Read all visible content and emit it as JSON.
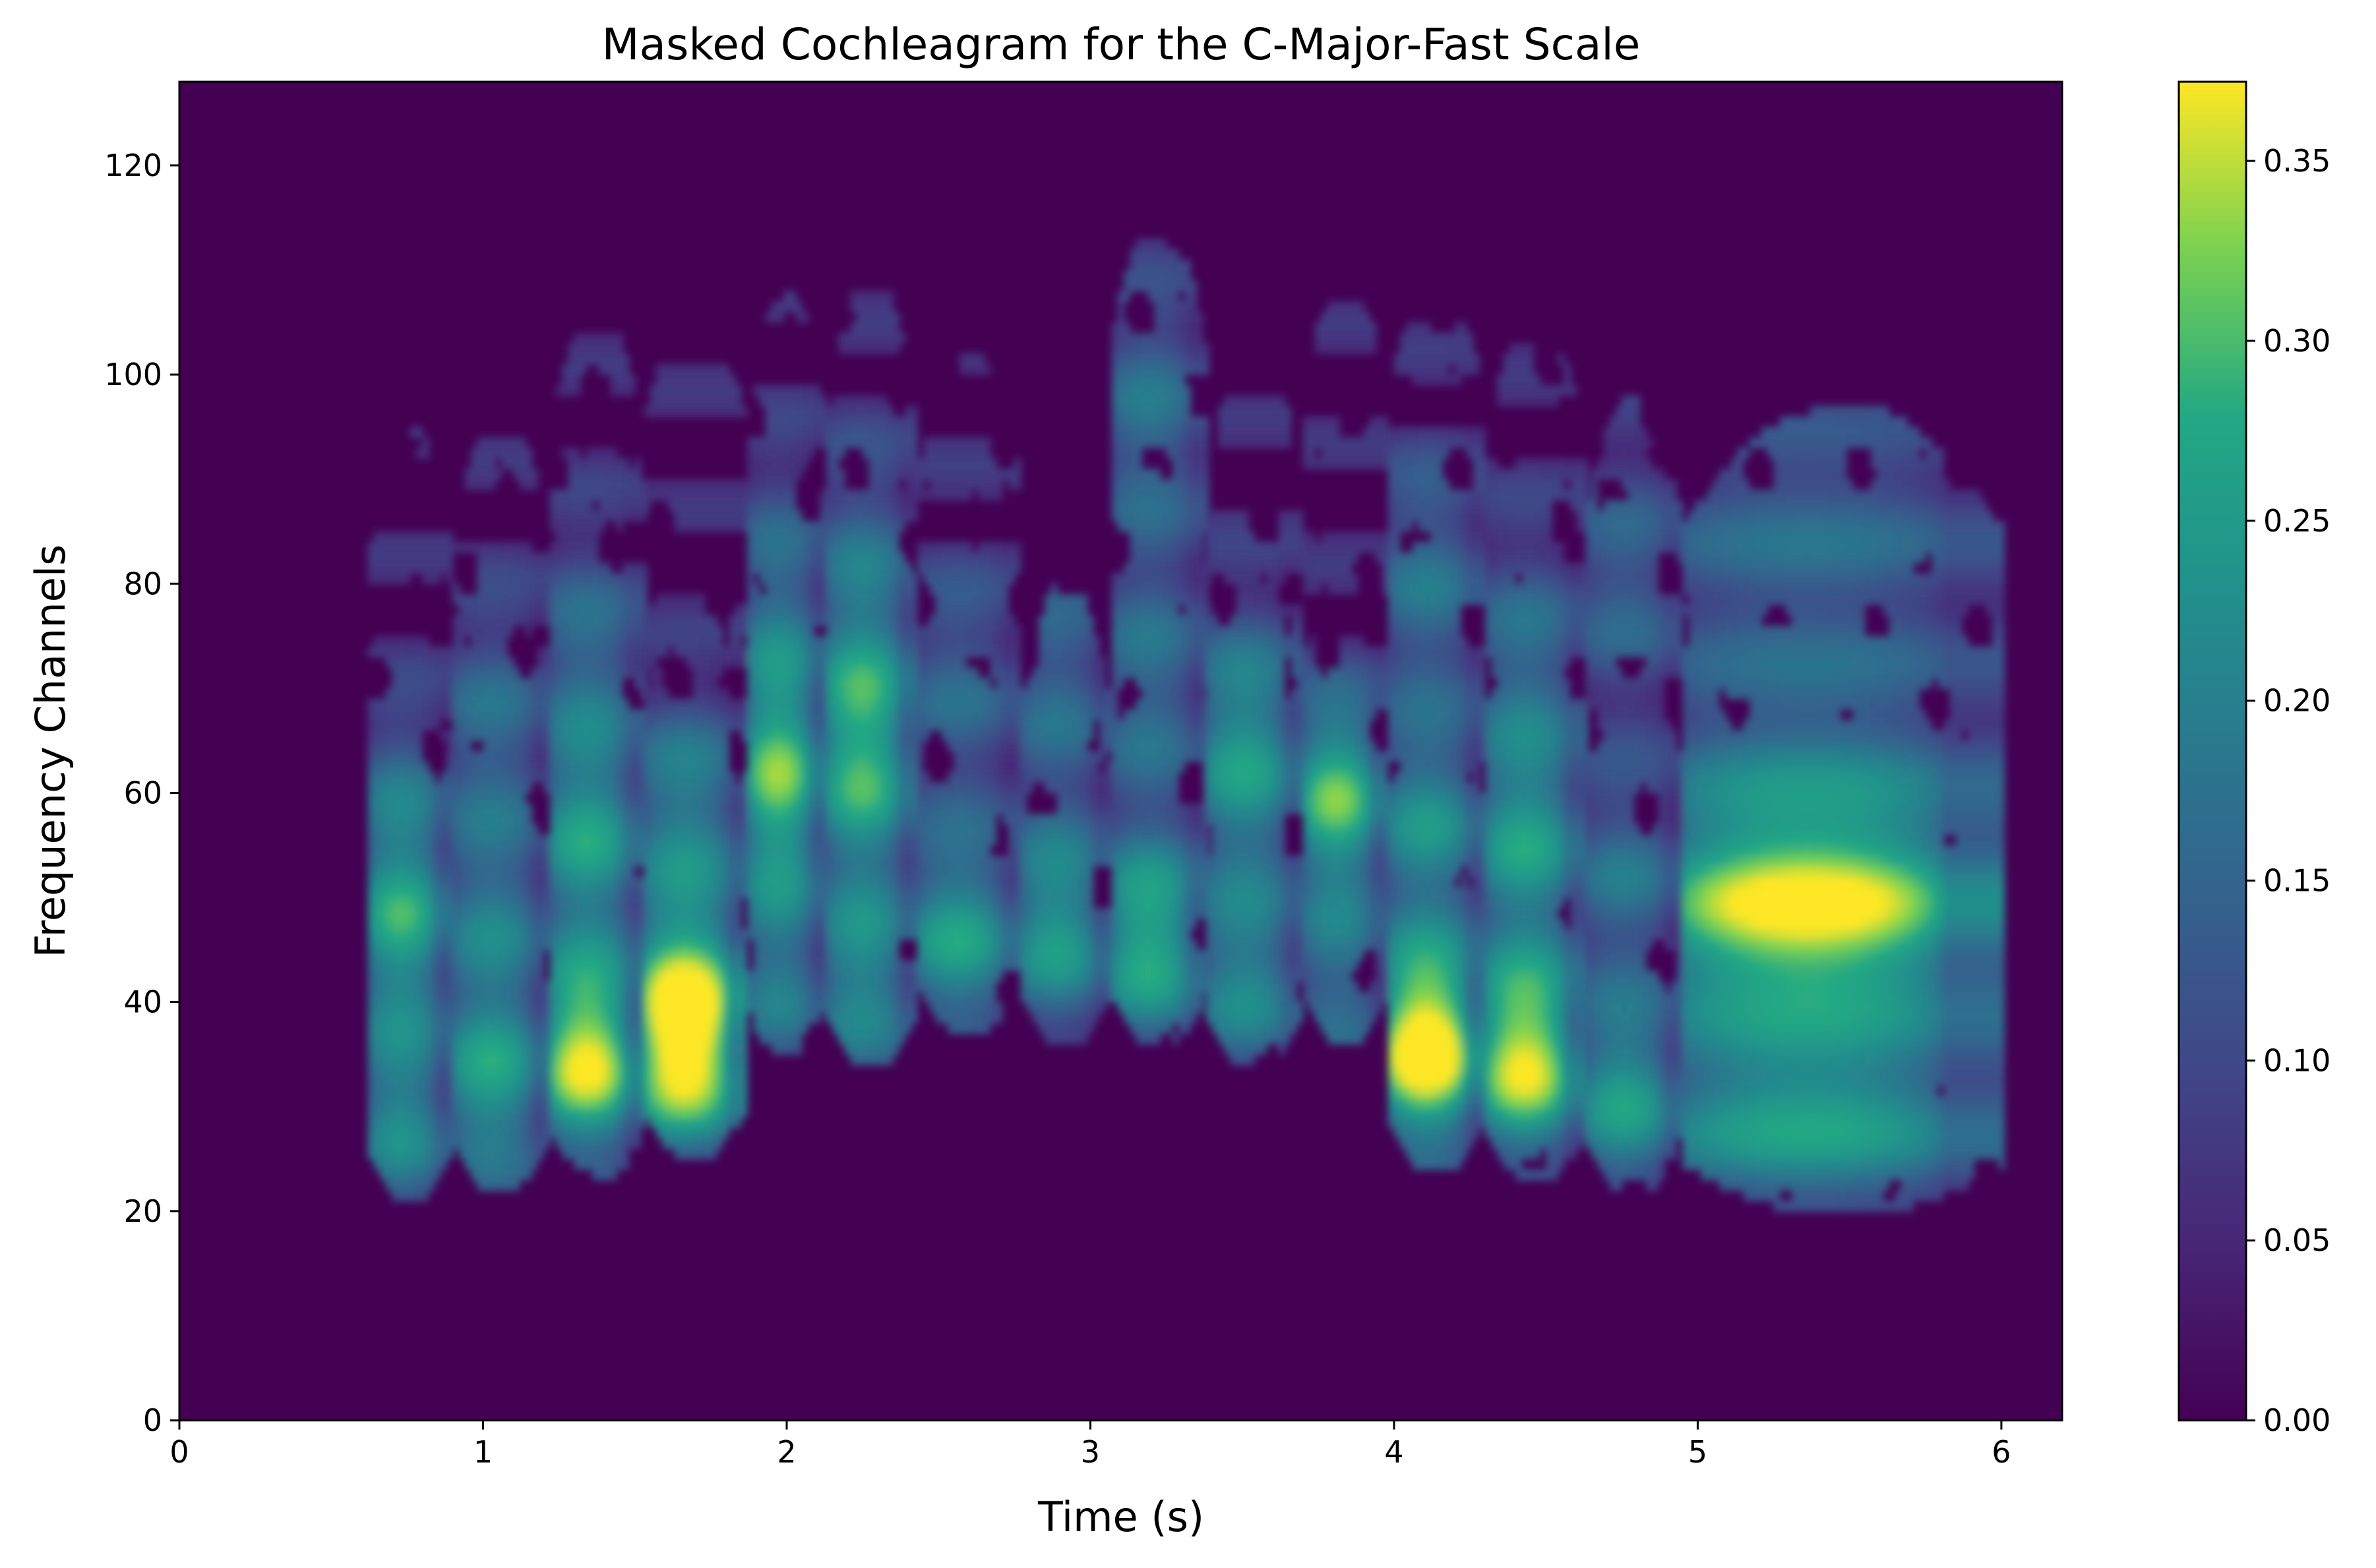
{
  "chart_data": {
    "type": "heatmap",
    "title": "Masked Cochleagram for the C-Major-Fast Scale",
    "xlabel": "Time (s)",
    "ylabel": "Frequency Channels",
    "xlim": [
      0,
      6.2
    ],
    "ylim": [
      0,
      128
    ],
    "x_ticks": [
      0,
      1,
      2,
      3,
      4,
      5,
      6
    ],
    "y_ticks": [
      0,
      20,
      40,
      60,
      80,
      100,
      120
    ],
    "colorbar": {
      "colormap": "viridis",
      "range": [
        0,
        0.372
      ],
      "ticks": [
        "0.00",
        "0.05",
        "0.10",
        "0.15",
        "0.20",
        "0.25",
        "0.30",
        "0.35"
      ],
      "tick_values": [
        0,
        0.05,
        0.1,
        0.15,
        0.2,
        0.25,
        0.3,
        0.35
      ]
    },
    "background_value": 0,
    "notes": [
      {
        "t_start": 0.62,
        "t_end": 0.9,
        "f_low": 21,
        "f_high": 95,
        "peaks": [
          {
            "f": 47,
            "v": 0.2
          },
          {
            "f": 29,
            "v": 0.17
          },
          {
            "f": 60,
            "v": 0.1
          }
        ]
      },
      {
        "t_start": 0.9,
        "t_end": 1.22,
        "f_low": 22,
        "f_high": 96,
        "peaks": [
          {
            "f": 32,
            "v": 0.2
          },
          {
            "f": 48,
            "v": 0.12
          },
          {
            "f": 66,
            "v": 0.11
          }
        ]
      },
      {
        "t_start": 1.22,
        "t_end": 1.53,
        "f_low": 23,
        "f_high": 106,
        "peaks": [
          {
            "f": 35,
            "v": 0.32
          },
          {
            "f": 55,
            "v": 0.18
          },
          {
            "f": 72,
            "v": 0.12
          }
        ]
      },
      {
        "t_start": 1.53,
        "t_end": 1.87,
        "f_low": 25,
        "f_high": 107,
        "peaks": [
          {
            "f": 36,
            "v": 0.36
          },
          {
            "f": 60,
            "v": 0.14
          },
          {
            "f": 47,
            "v": 0.1
          }
        ]
      },
      {
        "t_start": 1.87,
        "t_end": 2.13,
        "f_low": 35,
        "f_high": 108,
        "peaks": [
          {
            "f": 61,
            "v": 0.25
          },
          {
            "f": 41,
            "v": 0.12
          },
          {
            "f": 80,
            "v": 0.1
          }
        ]
      },
      {
        "t_start": 2.13,
        "t_end": 2.43,
        "f_low": 34,
        "f_high": 109,
        "peaks": [
          {
            "f": 64,
            "v": 0.24
          },
          {
            "f": 42,
            "v": 0.17
          },
          {
            "f": 82,
            "v": 0.1
          }
        ]
      },
      {
        "t_start": 2.43,
        "t_end": 2.77,
        "f_low": 37,
        "f_high": 102,
        "peaks": [
          {
            "f": 46,
            "v": 0.2
          },
          {
            "f": 70,
            "v": 0.1
          }
        ]
      },
      {
        "t_start": 2.77,
        "t_end": 3.07,
        "f_low": 36,
        "f_high": 80,
        "peaks": [
          {
            "f": 47,
            "v": 0.2
          },
          {
            "f": 70,
            "v": 0.11
          }
        ]
      },
      {
        "t_start": 3.07,
        "t_end": 3.38,
        "f_low": 36,
        "f_high": 115,
        "peaks": [
          {
            "f": 46,
            "v": 0.24
          },
          {
            "f": 70,
            "v": 0.12
          },
          {
            "f": 96,
            "v": 0.12
          }
        ]
      },
      {
        "t_start": 3.38,
        "t_end": 3.7,
        "f_low": 34,
        "f_high": 102,
        "peaks": [
          {
            "f": 42,
            "v": 0.16
          },
          {
            "f": 64,
            "v": 0.2
          }
        ]
      },
      {
        "t_start": 3.7,
        "t_end": 3.98,
        "f_low": 36,
        "f_high": 109,
        "peaks": [
          {
            "f": 60,
            "v": 0.25
          },
          {
            "f": 42,
            "v": 0.12
          }
        ]
      },
      {
        "t_start": 3.98,
        "t_end": 4.3,
        "f_low": 24,
        "f_high": 109,
        "peaks": [
          {
            "f": 36,
            "v": 0.37
          },
          {
            "f": 57,
            "v": 0.17
          },
          {
            "f": 80,
            "v": 0.12
          }
        ]
      },
      {
        "t_start": 4.3,
        "t_end": 4.63,
        "f_low": 23,
        "f_high": 105,
        "peaks": [
          {
            "f": 35,
            "v": 0.32
          },
          {
            "f": 55,
            "v": 0.18
          },
          {
            "f": 72,
            "v": 0.12
          }
        ]
      },
      {
        "t_start": 4.63,
        "t_end": 4.95,
        "f_low": 22,
        "f_high": 98,
        "peaks": [
          {
            "f": 31,
            "v": 0.2
          },
          {
            "f": 52,
            "v": 0.12
          },
          {
            "f": 80,
            "v": 0.1
          }
        ]
      },
      {
        "t_start": 4.95,
        "t_end": 6.0,
        "f_low": 20,
        "f_high": 97,
        "peaks": [
          {
            "f": 48,
            "v": 0.29
          },
          {
            "f": 29,
            "v": 0.2
          },
          {
            "f": 62,
            "v": 0.12
          },
          {
            "f": 85,
            "v": 0.1
          }
        ]
      }
    ]
  }
}
